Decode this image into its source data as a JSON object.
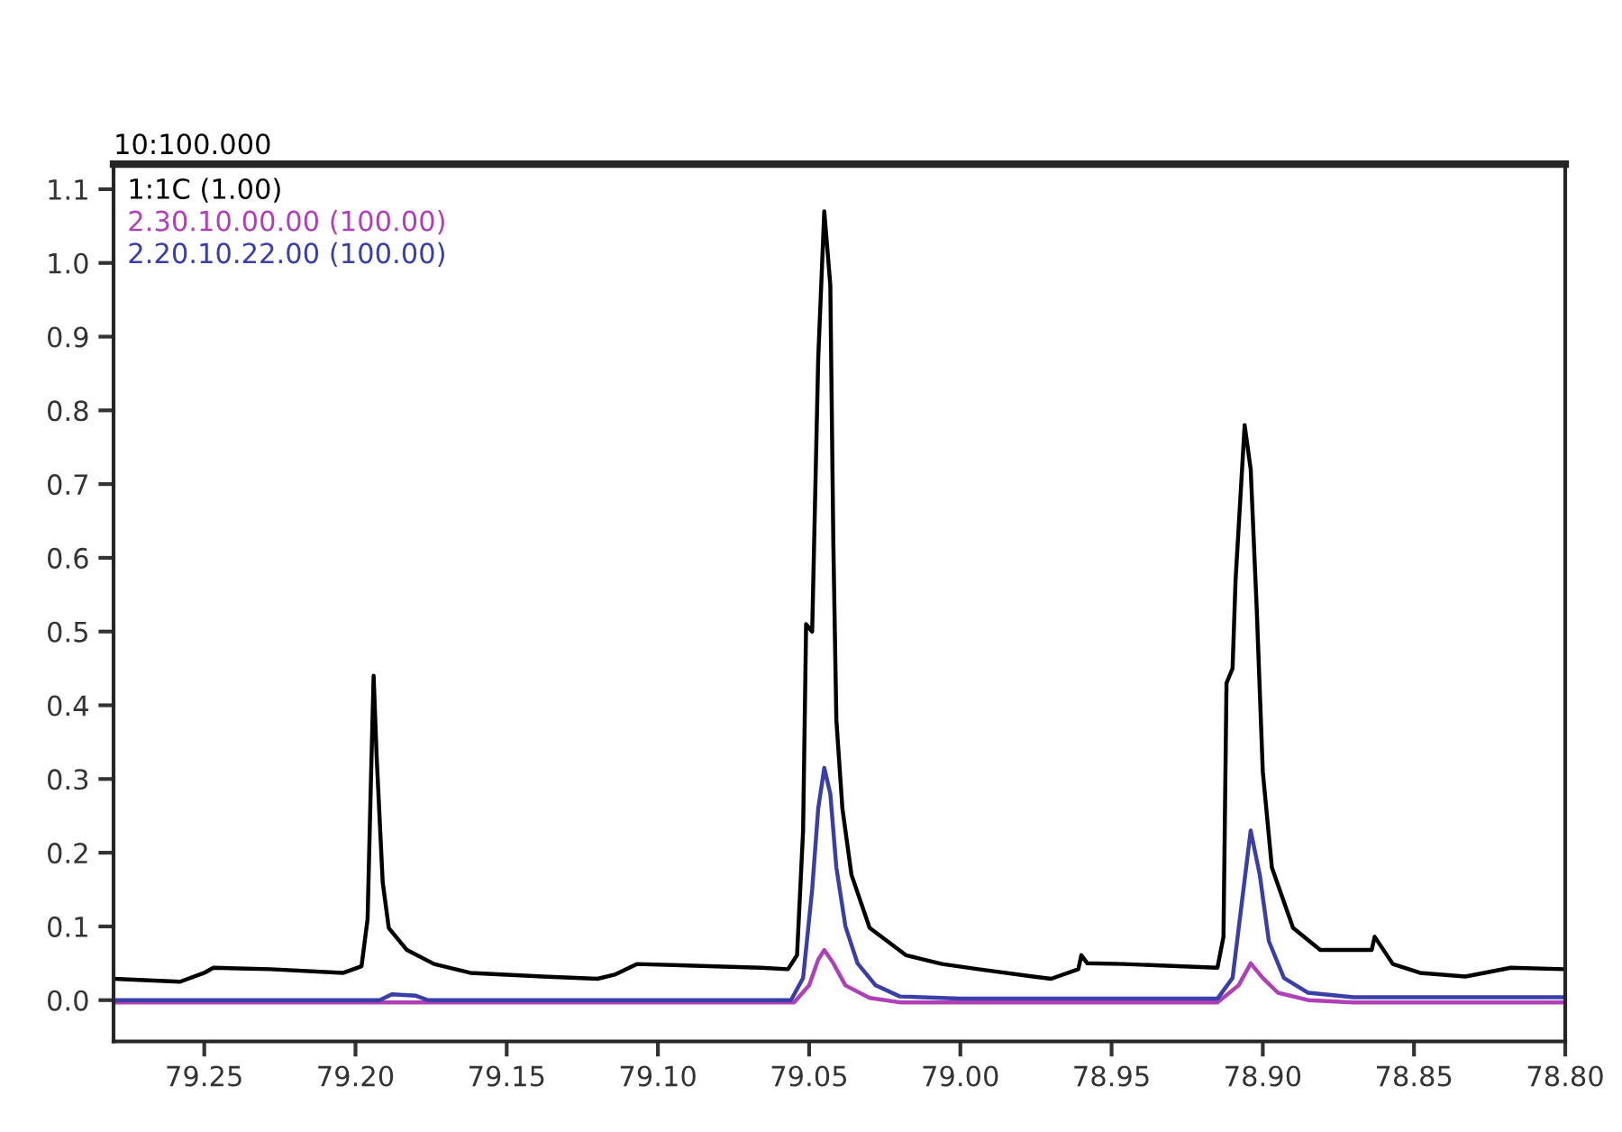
{
  "chart_data": {
    "type": "line",
    "annotations": [
      "10:100.000"
    ],
    "xlim": [
      79.28,
      78.8
    ],
    "xticks": [
      {
        "value": 79.25,
        "label": "79.25"
      },
      {
        "value": 79.2,
        "label": "79.20"
      },
      {
        "value": 79.15,
        "label": "79.15"
      },
      {
        "value": 79.1,
        "label": "79.10"
      },
      {
        "value": 79.05,
        "label": "79.05"
      },
      {
        "value": 79.0,
        "label": "79.00"
      },
      {
        "value": 78.95,
        "label": "78.95"
      },
      {
        "value": 78.9,
        "label": "78.90"
      },
      {
        "value": 78.85,
        "label": "78.85"
      },
      {
        "value": 78.8,
        "label": "78.80"
      }
    ],
    "ylim": [
      -0.056,
      1.134
    ],
    "yticks": [
      {
        "value": 0,
        "label": "0.0"
      },
      {
        "value": 0.1,
        "label": "0.1"
      },
      {
        "value": 0.2,
        "label": "0.2"
      },
      {
        "value": 0.3,
        "label": "0.3"
      },
      {
        "value": 0.4,
        "label": "0.4"
      },
      {
        "value": 0.5,
        "label": "0.5"
      },
      {
        "value": 0.6,
        "label": "0.6"
      },
      {
        "value": 0.7,
        "label": "0.7"
      },
      {
        "value": 0.8,
        "label": "0.8"
      },
      {
        "value": 0.9,
        "label": "0.9"
      },
      {
        "value": 1.0,
        "label": "1.0"
      },
      {
        "value": 1.1,
        "label": "1.1"
      }
    ],
    "grid": false,
    "legend": "top left",
    "marker": "none",
    "line_style": "solid",
    "series": [
      {
        "name": "1:1C (1.00)",
        "color": "#000000",
        "x": [
          79.28,
          79.258,
          79.25,
          79.247,
          79.228,
          79.204,
          79.198,
          79.196,
          79.195,
          79.194,
          79.193,
          79.191,
          79.189,
          79.183,
          79.174,
          79.162,
          79.138,
          79.12,
          79.114,
          79.107,
          79.066,
          79.057,
          79.054,
          79.052,
          79.051,
          79.049,
          79.047,
          79.045,
          79.043,
          79.042,
          79.041,
          79.039,
          79.036,
          79.03,
          79.018,
          79.006,
          78.994,
          78.976,
          78.97,
          78.961,
          78.96,
          78.958,
          78.946,
          78.915,
          78.913,
          78.912,
          78.91,
          78.909,
          78.906,
          78.904,
          78.902,
          78.9,
          78.897,
          78.89,
          78.881,
          78.864,
          78.863,
          78.857,
          78.848,
          78.833,
          78.818,
          78.8
        ],
        "values": [
          0.029,
          0.025,
          0.037,
          0.044,
          0.042,
          0.037,
          0.046,
          0.11,
          0.28,
          0.44,
          0.33,
          0.16,
          0.098,
          0.068,
          0.049,
          0.037,
          0.032,
          0.029,
          0.035,
          0.049,
          0.044,
          0.042,
          0.061,
          0.23,
          0.51,
          0.5,
          0.87,
          1.07,
          0.97,
          0.62,
          0.38,
          0.26,
          0.17,
          0.098,
          0.061,
          0.049,
          0.042,
          0.032,
          0.029,
          0.042,
          0.061,
          0.05,
          0.049,
          0.044,
          0.086,
          0.43,
          0.45,
          0.57,
          0.78,
          0.72,
          0.53,
          0.31,
          0.18,
          0.098,
          0.068,
          0.068,
          0.086,
          0.049,
          0.037,
          0.032,
          0.044,
          0.042
        ]
      },
      {
        "name": "2.30.10.00.00 (100.00)",
        "color": "#b040b8",
        "x": [
          79.28,
          79.055,
          79.05,
          79.047,
          79.045,
          79.042,
          79.038,
          79.03,
          79.02,
          78.915,
          78.908,
          78.904,
          78.9,
          78.895,
          78.885,
          78.87,
          78.8
        ],
        "values": [
          -0.003,
          -0.003,
          0.02,
          0.055,
          0.068,
          0.05,
          0.02,
          0.003,
          -0.003,
          -0.003,
          0.02,
          0.05,
          0.03,
          0.01,
          0.0,
          -0.003,
          -0.003
        ]
      },
      {
        "name": "2.20.10.22.00 (100.00)",
        "color": "#3a3fa8",
        "x": [
          79.28,
          79.192,
          79.188,
          79.18,
          79.176,
          79.056,
          79.052,
          79.049,
          79.047,
          79.045,
          79.043,
          79.041,
          79.038,
          79.034,
          79.028,
          79.02,
          79.0,
          78.915,
          78.91,
          78.907,
          78.904,
          78.901,
          78.898,
          78.893,
          78.885,
          78.87,
          78.8
        ],
        "values": [
          0.0,
          0.0,
          0.008,
          0.006,
          0.0,
          0.0,
          0.03,
          0.15,
          0.26,
          0.315,
          0.28,
          0.18,
          0.1,
          0.05,
          0.02,
          0.005,
          0.002,
          0.002,
          0.03,
          0.13,
          0.23,
          0.17,
          0.08,
          0.03,
          0.01,
          0.004,
          0.004
        ]
      }
    ]
  }
}
